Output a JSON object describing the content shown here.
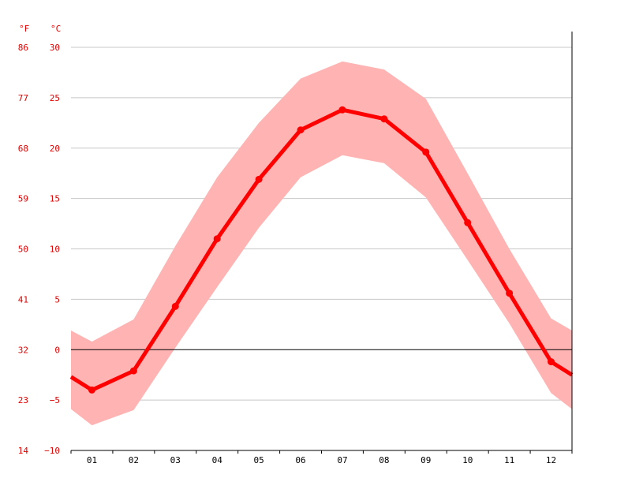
{
  "chart_data": {
    "type": "line",
    "title": "",
    "xlabel": "",
    "ylabel": "",
    "unit_f": "°F",
    "unit_c": "°C",
    "categories": [
      "01",
      "02",
      "03",
      "04",
      "05",
      "06",
      "07",
      "08",
      "09",
      "10",
      "11",
      "12"
    ],
    "series": [
      {
        "values": [
          -4.0,
          -2.1,
          4.3,
          11.0,
          16.9,
          21.8,
          23.8,
          22.9,
          19.6,
          12.6,
          5.6,
          -1.2
        ]
      }
    ],
    "band": {
      "max": [
        0.8,
        3.0,
        10.3,
        17.1,
        22.5,
        26.9,
        28.6,
        27.8,
        24.9,
        17.5,
        10.0,
        3.1
      ],
      "min": [
        -7.5,
        -6.0,
        0.2,
        6.2,
        12.1,
        17.1,
        19.3,
        18.5,
        15.1,
        8.9,
        2.6,
        -4.3
      ]
    },
    "edge_values": {
      "left": -2.7,
      "right": -2.5,
      "left_max": 1.9,
      "right_max": 1.9,
      "left_min": -5.9,
      "right_min": -5.9
    },
    "y_ticks_c": [
      30,
      25,
      20,
      15,
      10,
      5,
      0,
      -5,
      -10
    ],
    "y_ticks_f": [
      86,
      77,
      68,
      59,
      50,
      41,
      32,
      23,
      14
    ],
    "ylim": [
      -10,
      30
    ],
    "grid": true,
    "colors": {
      "line": "#ff0000",
      "band": "#ffb3b3",
      "grid": "#c8c8c8",
      "zero": "#000000",
      "tick_text": "#e00000"
    }
  }
}
